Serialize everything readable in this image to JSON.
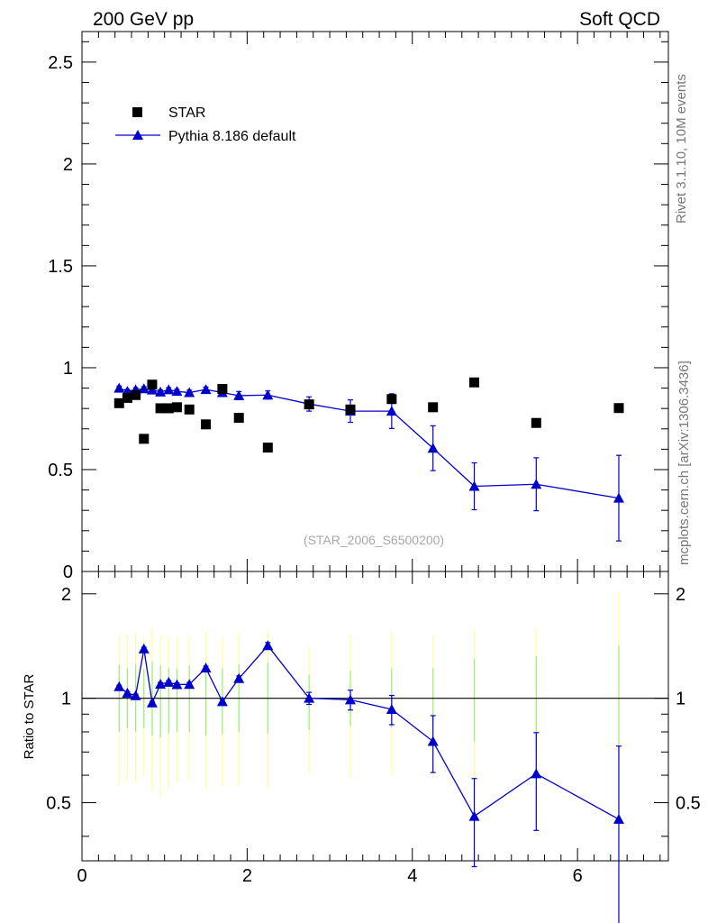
{
  "header": {
    "left": "200 GeV pp",
    "right": "Soft QCD"
  },
  "side_labels": {
    "rivet": "Rivet 3.1.10,  10M events",
    "mcplots": "mcplots.cern.ch [arXiv:1306.3436]"
  },
  "watermark": "(STAR_2006_S6500200)",
  "legend": {
    "star": "STAR",
    "pythia": "Pythia 8.186 default"
  },
  "colors": {
    "mc": "#0000cc",
    "data": "#000000",
    "band_outer": "#ffff99",
    "band_inner": "#99ee77"
  },
  "chart_data": [
    {
      "type": "scatter",
      "panel": "main",
      "xlim": [
        0,
        7.1
      ],
      "ylim": [
        0,
        2.65
      ],
      "xticks": [],
      "yticks": [
        "0",
        "0.5",
        "1",
        "1.5",
        "2",
        "2.5"
      ],
      "series": [
        {
          "name": "STAR",
          "marker": "square",
          "x": [
            0.45,
            0.55,
            0.65,
            0.75,
            0.85,
            0.95,
            1.05,
            1.15,
            1.3,
            1.5,
            1.7,
            1.9,
            2.25,
            2.75,
            3.25,
            3.75,
            4.25,
            4.75,
            5.5,
            6.5
          ],
          "y": [
            0.826,
            0.852,
            0.866,
            0.651,
            0.917,
            0.801,
            0.801,
            0.806,
            0.795,
            0.722,
            0.896,
            0.754,
            0.608,
            0.82,
            0.795,
            0.846,
            0.806,
            0.928,
            0.729,
            0.802
          ]
        },
        {
          "name": "Pythia 8.186 default",
          "marker": "triangle",
          "x": [
            0.45,
            0.55,
            0.65,
            0.75,
            0.85,
            0.95,
            1.05,
            1.15,
            1.3,
            1.5,
            1.7,
            1.9,
            2.25,
            2.75,
            3.25,
            3.75,
            4.25,
            4.75,
            5.5,
            6.5
          ],
          "y": [
            0.9,
            0.884,
            0.892,
            0.897,
            0.891,
            0.881,
            0.892,
            0.884,
            0.878,
            0.893,
            0.878,
            0.863,
            0.866,
            0.822,
            0.787,
            0.787,
            0.605,
            0.418,
            0.428,
            0.36
          ],
          "err": [
            0.01,
            0.01,
            0.01,
            0.01,
            0.01,
            0.01,
            0.01,
            0.01,
            0.012,
            0.012,
            0.015,
            0.02,
            0.02,
            0.035,
            0.055,
            0.085,
            0.11,
            0.115,
            0.13,
            0.21
          ]
        }
      ]
    },
    {
      "type": "line",
      "panel": "ratio",
      "ylabel": "Ratio to STAR",
      "xlim": [
        0,
        7.1
      ],
      "ylim": [
        0.34,
        2.32
      ],
      "xticks": [
        "0",
        "2",
        "4",
        "6"
      ],
      "yticks": [
        "0.5",
        "1",
        "2"
      ],
      "reference": 1,
      "data_band": {
        "x": [
          0.45,
          0.55,
          0.65,
          0.75,
          0.85,
          0.95,
          1.05,
          1.15,
          1.3,
          1.5,
          1.7,
          1.9,
          2.25,
          2.75,
          3.25,
          3.75,
          4.25,
          4.75,
          5.5,
          6.5
        ],
        "outer_low": [
          0.56,
          0.58,
          0.57,
          0.6,
          0.54,
          0.52,
          0.55,
          0.57,
          0.58,
          0.55,
          0.56,
          0.56,
          0.55,
          0.61,
          0.59,
          0.6,
          0.59,
          0.48,
          0.45,
          0.42
        ],
        "outer_high": [
          1.54,
          1.52,
          1.55,
          1.5,
          1.6,
          1.52,
          1.5,
          1.5,
          1.51,
          1.55,
          1.5,
          1.54,
          1.58,
          1.4,
          1.52,
          1.55,
          1.52,
          1.58,
          1.61,
          2.04
        ],
        "inner_low": [
          0.8,
          0.82,
          0.8,
          0.82,
          0.78,
          0.77,
          0.79,
          0.8,
          0.8,
          0.78,
          0.79,
          0.8,
          0.79,
          0.81,
          0.83,
          0.82,
          0.81,
          0.75,
          0.72,
          0.68
        ],
        "inner_high": [
          1.25,
          1.22,
          1.25,
          1.21,
          1.28,
          1.24,
          1.22,
          1.22,
          1.24,
          1.27,
          1.22,
          1.25,
          1.27,
          1.17,
          1.2,
          1.22,
          1.22,
          1.3,
          1.32,
          1.42
        ]
      },
      "series": [
        {
          "name": "Pythia 8.186 default / STAR",
          "marker": "triangle",
          "x": [
            0.45,
            0.55,
            0.65,
            0.75,
            0.85,
            0.95,
            1.05,
            1.15,
            1.3,
            1.5,
            1.7,
            1.9,
            2.25,
            2.75,
            3.25,
            3.75,
            4.25,
            4.75,
            5.5,
            6.5
          ],
          "y": [
            1.08,
            1.035,
            1.018,
            1.388,
            0.97,
            1.098,
            1.112,
            1.095,
            1.097,
            1.222,
            0.978,
            1.14,
            1.418,
            1.0,
            0.99,
            0.929,
            0.751,
            0.457,
            0.606,
            0.448
          ],
          "err": [
            0.01,
            0.01,
            0.01,
            0.015,
            0.01,
            0.012,
            0.012,
            0.012,
            0.014,
            0.016,
            0.015,
            0.02,
            0.03,
            0.04,
            0.065,
            0.09,
            0.14,
            0.13,
            0.19,
            0.28
          ]
        }
      ]
    }
  ]
}
